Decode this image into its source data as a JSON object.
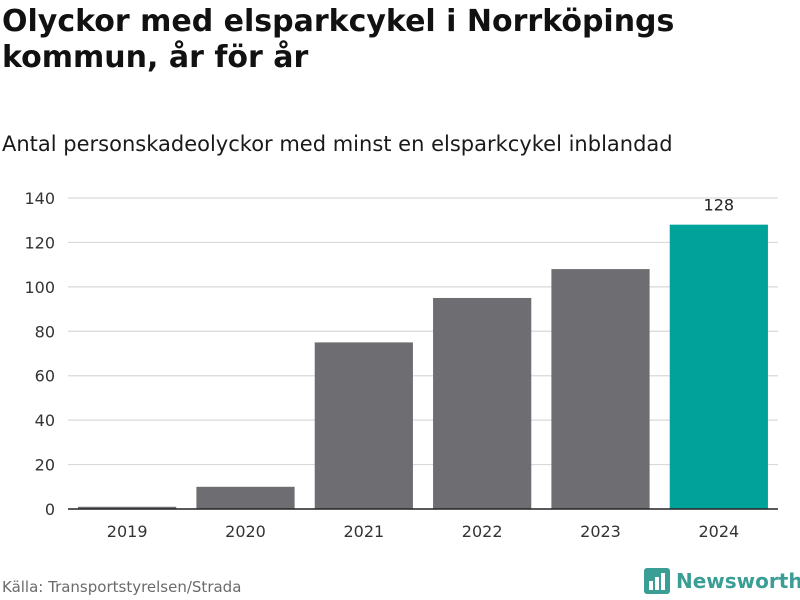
{
  "header": {
    "title": "Olyckor med elsparkcykel i Norrköpings kommun, år för år",
    "subtitle": "Antal personskadeolyckor med minst en elsparkcykel inblandad"
  },
  "footer": {
    "source": "Källa: Transportstyrelsen/Strada",
    "brand": "Newsworthy",
    "brand_icon": "bar-chart-logo-icon"
  },
  "colors": {
    "bar": "#6e6d72",
    "highlight": "#00a29a",
    "grid": "#d9d9d9",
    "axis": "#222222",
    "brand": "#3a9e95"
  },
  "chart_data": {
    "type": "bar",
    "categories": [
      "2019",
      "2020",
      "2021",
      "2022",
      "2023",
      "2024"
    ],
    "values": [
      1,
      10,
      75,
      95,
      108,
      128
    ],
    "highlight_index": 5,
    "data_labels": [
      {
        "index": 5,
        "text": "128"
      }
    ],
    "yticks": [
      0,
      20,
      40,
      60,
      80,
      100,
      120,
      140
    ],
    "ylim": [
      0,
      140
    ],
    "grid": true,
    "legend": "none",
    "xlabel": "",
    "ylabel": ""
  }
}
